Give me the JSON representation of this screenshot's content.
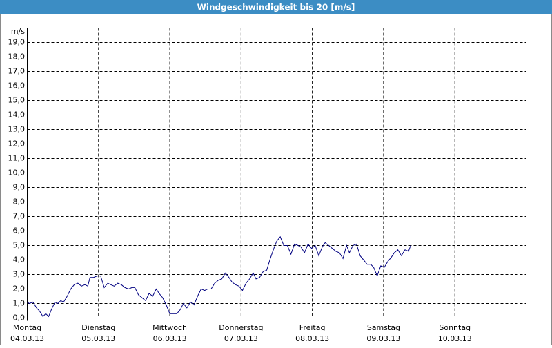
{
  "chart_data": {
    "type": "line",
    "title": "Windgeschwindigkeit bis 20 [m/s]",
    "y_unit": "m/s",
    "xlim": [
      0,
      7
    ],
    "xticks": [
      {
        "value": 0,
        "label": "Montag",
        "date": "04.03.13"
      },
      {
        "value": 1,
        "label": "Dienstag",
        "date": "05.03.13"
      },
      {
        "value": 2,
        "label": "Mittwoch",
        "date": "06.03.13"
      },
      {
        "value": 3,
        "label": "Donnerstag",
        "date": "07.03.13"
      },
      {
        "value": 4,
        "label": "Freitag",
        "date": "08.03.13"
      },
      {
        "value": 5,
        "label": "Samstag",
        "date": "09.03.13"
      },
      {
        "value": 6,
        "label": "Sonntag",
        "date": "10.03.13"
      }
    ],
    "ylim": [
      0,
      20
    ],
    "yticks": [
      {
        "value": 0,
        "label": "0,0"
      },
      {
        "value": 1,
        "label": "1,0"
      },
      {
        "value": 2,
        "label": "2,0"
      },
      {
        "value": 3,
        "label": "3,0"
      },
      {
        "value": 4,
        "label": "4,0"
      },
      {
        "value": 5,
        "label": "5,0"
      },
      {
        "value": 6,
        "label": "6,0"
      },
      {
        "value": 7,
        "label": "7,0"
      },
      {
        "value": 8,
        "label": "8,0"
      },
      {
        "value": 9,
        "label": "9,0"
      },
      {
        "value": 10,
        "label": "10,0"
      },
      {
        "value": 11,
        "label": "11,0"
      },
      {
        "value": 12,
        "label": "12,0"
      },
      {
        "value": 13,
        "label": "13,0"
      },
      {
        "value": 14,
        "label": "14,0"
      },
      {
        "value": 15,
        "label": "15,0"
      },
      {
        "value": 16,
        "label": "16,0"
      },
      {
        "value": 17,
        "label": "17,0"
      },
      {
        "value": 18,
        "label": "18,0"
      },
      {
        "value": 19,
        "label": "19,0"
      }
    ],
    "grid": true,
    "color": "#000080",
    "x": [
      0,
      0.03,
      0.08,
      0.13,
      0.17,
      0.22,
      0.26,
      0.3,
      0.34,
      0.39,
      0.43,
      0.47,
      0.51,
      0.56,
      0.61,
      0.66,
      0.71,
      0.76,
      0.81,
      0.85,
      0.88,
      0.93,
      0.98,
      1.03,
      1.08,
      1.13,
      1.17,
      1.22,
      1.27,
      1.32,
      1.37,
      1.42,
      1.47,
      1.51,
      1.56,
      1.61,
      1.66,
      1.71,
      1.76,
      1.81,
      1.85,
      1.9,
      1.95,
      2.0,
      2.05,
      2.1,
      2.15,
      2.19,
      2.24,
      2.29,
      2.34,
      2.39,
      2.44,
      2.49,
      2.53,
      2.58,
      2.63,
      2.68,
      2.73,
      2.78,
      2.83,
      2.87,
      2.92,
      2.97,
      3.02,
      3.07,
      3.12,
      3.17,
      3.21,
      3.26,
      3.31,
      3.36,
      3.41,
      3.46,
      3.5,
      3.55,
      3.6,
      3.65,
      3.7,
      3.75,
      3.8,
      3.84,
      3.89,
      3.94,
      3.99,
      4.04,
      4.09,
      4.14,
      4.18,
      4.23,
      4.28,
      4.33,
      4.38,
      4.43,
      4.48,
      4.52,
      4.57,
      4.62,
      4.67,
      4.72,
      4.77,
      4.82,
      4.86,
      4.91,
      4.96,
      5.01,
      5.06,
      5.11,
      5.15,
      5.2,
      5.25,
      5.3,
      5.35,
      5.38
    ],
    "values": [
      1.1,
      1.0,
      1.1,
      0.7,
      0.5,
      0.1,
      0.3,
      0.1,
      0.6,
      1.1,
      1.0,
      1.2,
      1.1,
      1.5,
      2.0,
      2.3,
      2.4,
      2.2,
      2.3,
      2.2,
      2.8,
      2.8,
      2.9,
      2.9,
      2.1,
      2.4,
      2.3,
      2.2,
      2.4,
      2.3,
      2.1,
      2.0,
      2.1,
      2.1,
      1.6,
      1.4,
      1.2,
      1.7,
      1.5,
      2.0,
      1.7,
      1.4,
      0.9,
      0.3,
      0.3,
      0.3,
      0.6,
      1.0,
      0.7,
      1.1,
      0.9,
      1.5,
      2.0,
      1.9,
      2.0,
      2.0,
      2.4,
      2.6,
      2.7,
      3.1,
      2.8,
      2.5,
      2.3,
      2.2,
      1.9,
      2.4,
      2.7,
      3.1,
      2.7,
      2.8,
      3.2,
      3.3,
      4.1,
      4.8,
      5.3,
      5.6,
      5.0,
      5.0,
      4.4,
      5.1,
      5.0,
      4.9,
      4.5,
      5.1,
      4.8,
      5.0,
      4.3,
      4.9,
      5.2,
      5.0,
      4.8,
      4.6,
      4.5,
      4.1,
      5.0,
      4.5,
      5.0,
      5.1,
      4.3,
      4.0,
      3.7,
      3.7,
      3.5,
      2.9,
      3.6,
      3.5,
      3.9,
      4.2,
      4.5,
      4.7,
      4.3,
      4.7,
      4.6,
      5.0
    ]
  }
}
